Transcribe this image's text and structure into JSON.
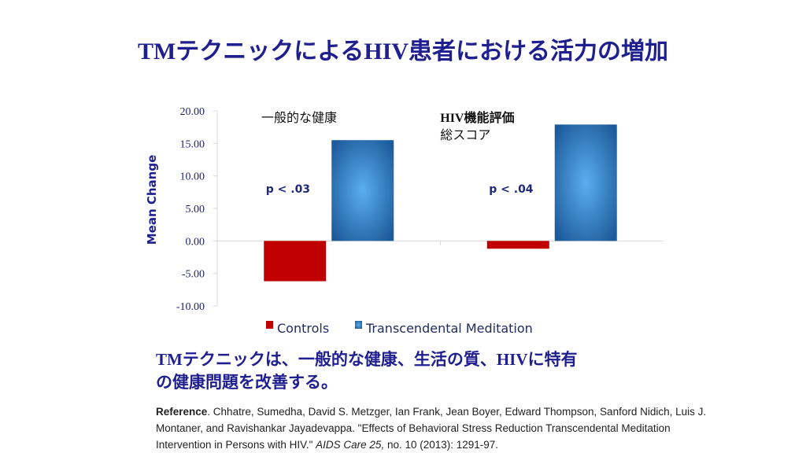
{
  "title": "TMテクニックによるHIV患者における活力の増加",
  "chart_data": {
    "type": "bar",
    "categories": [
      "一般的な健康",
      "HIV機能評価 総スコア"
    ],
    "category_label_lines": [
      [
        "一般的な健康"
      ],
      [
        "HIV機能評価",
        "総スコア"
      ]
    ],
    "series": [
      {
        "name": "Controls",
        "values": [
          -6.2,
          -1.2
        ],
        "color": "#c00000"
      },
      {
        "name": "Transcendental Meditation",
        "values": [
          15.5,
          17.9
        ],
        "color": "#3a8fd8"
      }
    ],
    "annotations": [
      "p < .03",
      "p < .04"
    ],
    "ylabel": "Mean Change",
    "ylim": [
      -10,
      20
    ],
    "yticks": [
      "20.00",
      "15.00",
      "10.00",
      "5.00",
      "0.00",
      "-5.00",
      "-10.00"
    ],
    "grid": false,
    "legend": "bottom"
  },
  "summary": [
    "TMテクニックは、一般的な健康、生活の質、HIVに特有",
    "の健康問題を改善する。"
  ],
  "reference": {
    "label": "Reference",
    "text": ". Chhatre, Sumedha, David S. Metzger, Ian Frank, Jean Boyer, Edward Thompson, Sanford Nidich, Luis J. Montaner, and Ravishankar Jayadevappa. \"Effects of Behavioral Stress Reduction Transcendental Meditation Intervention in Persons with HIV.\" ",
    "journal": "AIDS Care 25,",
    "tail": " no. 10 (2013): 1291-97."
  }
}
